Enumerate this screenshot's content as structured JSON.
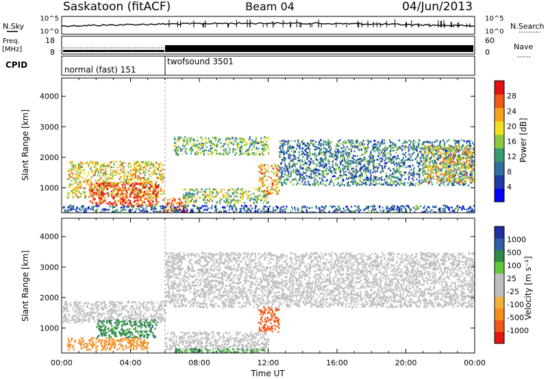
{
  "header": {
    "title": "Saskatoon (fitACF)",
    "beam": "Beam 04",
    "date": "04/Jun/2013"
  },
  "panels": {
    "nsky": {
      "left_label": "N.Sky",
      "left_ticks": [
        "10^5",
        "10^0"
      ],
      "right_ticks": [
        "10^5",
        "10^0"
      ],
      "right_label": "N.Search"
    },
    "freq": {
      "left_label_1": "Freq.",
      "left_label_2": "[MHz]",
      "left_ticks": [
        "18",
        "8"
      ],
      "right_ticks": [
        "60",
        "0"
      ],
      "right_label": "Nave"
    },
    "cpid": {
      "label": "CPID",
      "mode_1": "normal (fast) 151",
      "mode_2": "twofsound 3501"
    }
  },
  "colors": {
    "power_scale": [
      "#0000ff",
      "#203aa8",
      "#2f6fa0",
      "#3a9b72",
      "#8cc83c",
      "#f0e020",
      "#f7a21a",
      "#ef5a16",
      "#e61010"
    ],
    "velocity_scale": [
      "#e81515",
      "#f05a18",
      "#f58c1c",
      "#f4b038",
      "#bfbfbf",
      "#bfbfbf",
      "#60c83a",
      "#2f8a4a",
      "#2f5fa8",
      "#2030a0"
    ],
    "velocity_ground_scatter": "#bfbfbf"
  },
  "chart_data": [
    {
      "type": "heatmap",
      "title": "",
      "xlabel": "Time UT",
      "ylabel": "Slant Range [km]",
      "x_ticks": [
        "00:00",
        "04:00",
        "08:00",
        "12:00",
        "16:00",
        "20:00",
        "00:00"
      ],
      "y_ticks": [
        1000,
        2000,
        3000,
        4000
      ],
      "xlim": [
        0,
        24
      ],
      "ylim": [
        180,
        4600
      ],
      "colorbar": {
        "label": "Power [dB]",
        "ticks": [
          4,
          8,
          12,
          16,
          20,
          24,
          28
        ],
        "range": [
          0,
          32
        ]
      },
      "mode_change_hour": 6,
      "regions": [
        {
          "t0": 0.3,
          "t1": 5.9,
          "r0": 700,
          "r1": 1900,
          "level": 20
        },
        {
          "t0": 1.6,
          "t1": 5.6,
          "r0": 400,
          "r1": 1200,
          "level": 28
        },
        {
          "t0": 5.8,
          "t1": 7.3,
          "r0": 200,
          "r1": 700,
          "level": 28
        },
        {
          "t0": 6.5,
          "t1": 12.0,
          "r0": 2100,
          "r1": 2700,
          "level": 14
        },
        {
          "t0": 7.0,
          "t1": 12.0,
          "r0": 500,
          "r1": 1000,
          "level": 16
        },
        {
          "t0": 11.4,
          "t1": 12.6,
          "r0": 800,
          "r1": 1800,
          "level": 22
        },
        {
          "t0": 12.6,
          "t1": 24.0,
          "r0": 1100,
          "r1": 2600,
          "level": 10
        },
        {
          "t0": 21.0,
          "t1": 24.0,
          "r0": 1200,
          "r1": 2400,
          "level": 20
        },
        {
          "t0": 0.0,
          "t1": 24.0,
          "r0": 200,
          "r1": 450,
          "level": 8
        }
      ]
    },
    {
      "type": "heatmap",
      "title": "",
      "xlabel": "Time UT",
      "ylabel": "Slant Range [km]",
      "x_ticks": [
        "00:00",
        "04:00",
        "08:00",
        "12:00",
        "16:00",
        "20:00",
        "00:00"
      ],
      "y_ticks": [
        1000,
        2000,
        3000,
        4000
      ],
      "xlim": [
        0,
        24
      ],
      "ylim": [
        180,
        4600
      ],
      "colorbar": {
        "label": "Velocity [m s⁻¹]",
        "ticks": [
          1000,
          500,
          100,
          25,
          -25,
          -100,
          -500,
          -1000
        ]
      },
      "mode_change_hour": 6,
      "regions": [
        {
          "t0": 0.0,
          "t1": 6.0,
          "r0": 1200,
          "r1": 1900,
          "velocity": 0,
          "ground_scatter": true
        },
        {
          "t0": 2.0,
          "t1": 5.5,
          "r0": 700,
          "r1": 1300,
          "velocity": 150
        },
        {
          "t0": 0.3,
          "t1": 5.0,
          "r0": 300,
          "r1": 700,
          "velocity": -150
        },
        {
          "t0": 6.0,
          "t1": 24.0,
          "r0": 1700,
          "r1": 3500,
          "velocity": 0,
          "ground_scatter": true
        },
        {
          "t0": 11.4,
          "t1": 12.6,
          "r0": 900,
          "r1": 1700,
          "velocity": -400
        },
        {
          "t0": 6.0,
          "t1": 12.0,
          "r0": 300,
          "r1": 900,
          "velocity": 0,
          "ground_scatter": true
        },
        {
          "t0": 6.5,
          "t1": 12.0,
          "r0": 180,
          "r1": 350,
          "velocity": 120
        }
      ]
    }
  ]
}
